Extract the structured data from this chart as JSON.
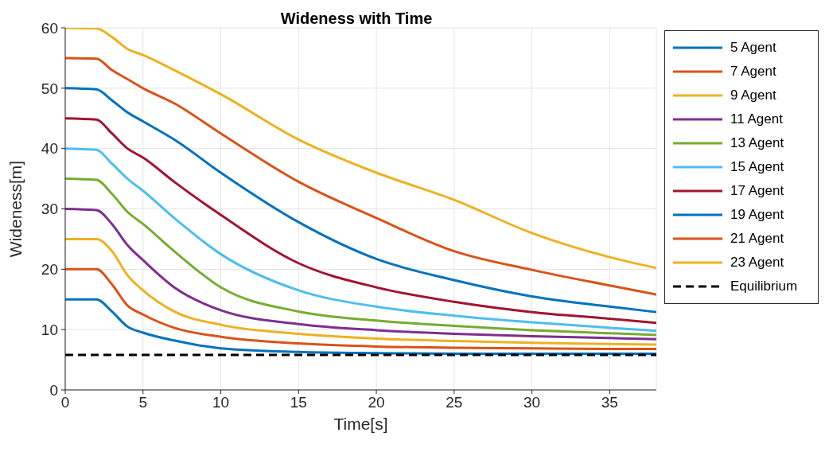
{
  "chart_data": {
    "type": "line",
    "title": "Wideness with Time",
    "xlabel": "Time[s]",
    "ylabel": "Wideness[m]",
    "x": [
      0,
      2,
      3,
      4,
      5,
      7,
      10,
      15,
      20,
      25,
      30,
      35,
      38
    ],
    "xlim": [
      0,
      38
    ],
    "xticks": [
      0,
      5,
      10,
      15,
      20,
      25,
      30,
      35
    ],
    "ylim": [
      0,
      60
    ],
    "yticks": [
      0,
      10,
      20,
      30,
      40,
      50,
      60
    ],
    "grid": true,
    "legend": "top right",
    "marker": "none",
    "line_style": "solid",
    "series": [
      {
        "name": "5 Agent",
        "color": "#0072bd",
        "values": [
          15,
          15,
          13,
          10.5,
          9.5,
          8.2,
          6.9,
          6.3,
          6.1,
          6,
          6,
          6,
          6
        ]
      },
      {
        "name": "7 Agent",
        "color": "#d95319",
        "values": [
          20,
          20,
          17.5,
          14,
          12.5,
          10.3,
          8.8,
          7.7,
          7.2,
          7,
          6.9,
          6.8,
          6.8
        ]
      },
      {
        "name": "9 Agent",
        "color": "#edb120",
        "values": [
          25,
          25,
          23,
          19,
          16.5,
          13,
          10.8,
          9.3,
          8.5,
          8.1,
          7.8,
          7.6,
          7.5
        ]
      },
      {
        "name": "11 Agent",
        "color": "#7e2f8e",
        "values": [
          30,
          29.8,
          27.5,
          24,
          21.5,
          17,
          13.2,
          10.9,
          9.9,
          9.3,
          8.9,
          8.6,
          8.4
        ]
      },
      {
        "name": "13 Agent",
        "color": "#77ac30",
        "values": [
          35,
          34.8,
          32.5,
          29.5,
          27.5,
          23,
          17,
          13,
          11.5,
          10.6,
          9.9,
          9.4,
          9.1
        ]
      },
      {
        "name": "15 Agent",
        "color": "#4dbeee",
        "values": [
          40,
          39.8,
          37.5,
          35,
          33,
          28.5,
          22.5,
          16.5,
          13.8,
          12.3,
          11.2,
          10.3,
          9.8
        ]
      },
      {
        "name": "17 Agent",
        "color": "#a2142f",
        "values": [
          45,
          44.8,
          42.5,
          40,
          38.5,
          34.5,
          29,
          21,
          17,
          14.6,
          12.9,
          11.8,
          11.1
        ]
      },
      {
        "name": "19 Agent",
        "color": "#0072bd",
        "values": [
          50,
          49.8,
          48,
          46,
          44.5,
          41.5,
          36,
          27.8,
          21.7,
          18.2,
          15.5,
          13.8,
          12.9
        ]
      },
      {
        "name": "21 Agent",
        "color": "#d95319",
        "values": [
          55,
          54.9,
          53,
          51.5,
          50,
          47.5,
          42.5,
          34.5,
          28.5,
          23,
          19.9,
          17.3,
          15.8
        ]
      },
      {
        "name": "23 Agent",
        "color": "#edb120",
        "values": [
          60,
          59.9,
          58.5,
          56.5,
          55.5,
          53,
          49,
          41.5,
          36,
          31.5,
          26,
          22,
          20.2
        ]
      },
      {
        "name": "Equilibrium",
        "color": "#000000",
        "x": [
          0,
          38
        ],
        "values": [
          5.8,
          5.8
        ],
        "line_style": "dashed"
      }
    ]
  }
}
